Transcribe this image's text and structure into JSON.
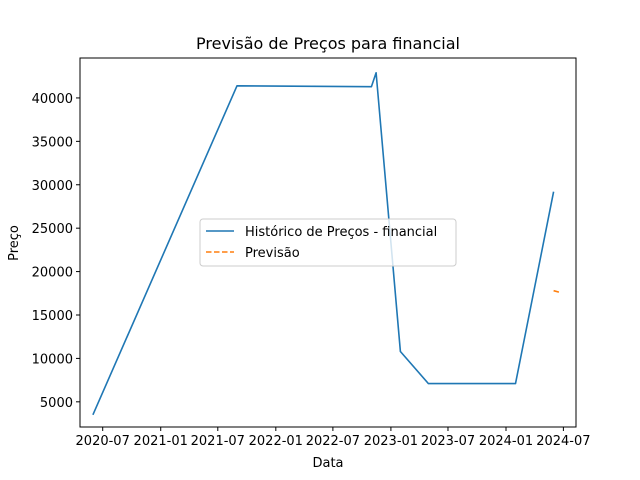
{
  "chart_data": {
    "type": "line",
    "title": "Previsão de Preços para financial",
    "xlabel": "Data",
    "ylabel": "Preço",
    "x_ticks": [
      "2020-07",
      "2021-01",
      "2021-07",
      "2022-01",
      "2022-07",
      "2023-01",
      "2023-07",
      "2024-01",
      "2024-07"
    ],
    "y_ticks": [
      5000,
      10000,
      15000,
      20000,
      25000,
      30000,
      35000,
      40000
    ],
    "xlim": [
      "2020-04-20",
      "2024-08-10"
    ],
    "ylim": [
      2100,
      44600
    ],
    "grid": false,
    "legend_position": "center-left",
    "series": [
      {
        "name": "Histórico de Preços - financial",
        "color": "#1f77b4",
        "style": "solid",
        "points": [
          {
            "x": "2020-05-31",
            "y": 3500
          },
          {
            "x": "2021-08-31",
            "y": 41400
          },
          {
            "x": "2022-10-31",
            "y": 41300
          },
          {
            "x": "2022-11-15",
            "y": 42900
          },
          {
            "x": "2023-01-31",
            "y": 10800
          },
          {
            "x": "2023-04-30",
            "y": 7100
          },
          {
            "x": "2024-01-31",
            "y": 7100
          },
          {
            "x": "2024-05-31",
            "y": 29200
          }
        ]
      },
      {
        "name": "Previsão",
        "color": "#ff7f0e",
        "style": "dashed",
        "points": [
          {
            "x": "2024-05-31",
            "y": 17800
          },
          {
            "x": "2024-06-20",
            "y": 17600
          }
        ]
      }
    ]
  }
}
